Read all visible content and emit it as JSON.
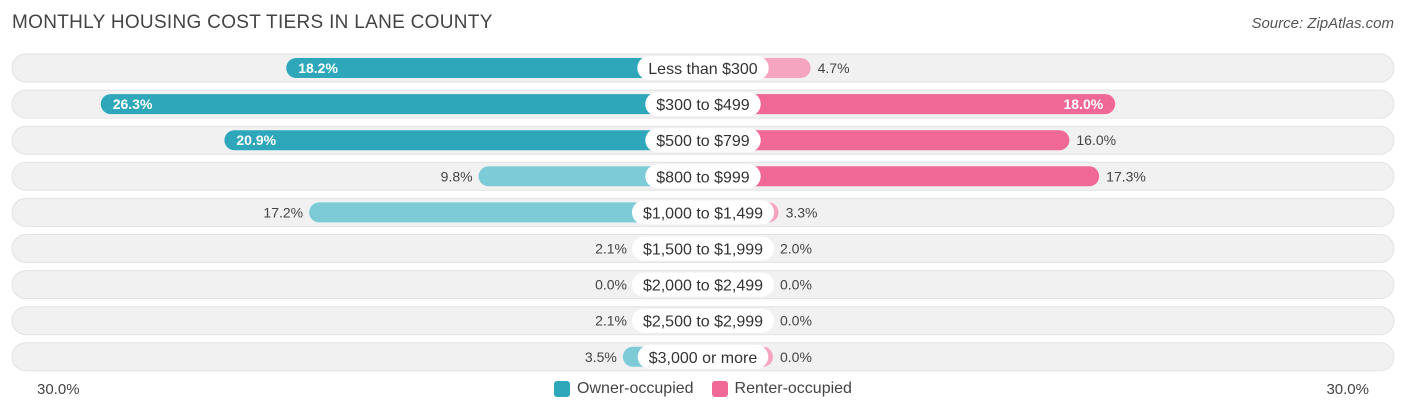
{
  "chart_data": {
    "type": "bar",
    "orientation": "horizontal-diverging",
    "title": "MONTHLY HOUSING COST TIERS IN LANE COUNTY",
    "source": "Source: ZipAtlas.com",
    "categories": [
      "Less than $300",
      "$300 to $499",
      "$500 to $799",
      "$800 to $999",
      "$1,000 to $1,499",
      "$1,500 to $1,999",
      "$2,000 to $2,499",
      "$2,500 to $2,999",
      "$3,000 or more"
    ],
    "series": [
      {
        "name": "Owner-occupied",
        "side": "left",
        "values": [
          18.2,
          26.3,
          20.9,
          9.8,
          17.2,
          2.1,
          0.0,
          2.1,
          3.5
        ],
        "labels": [
          "18.2%",
          "26.3%",
          "20.9%",
          "9.8%",
          "17.2%",
          "2.1%",
          "0.0%",
          "2.1%",
          "3.5%"
        ]
      },
      {
        "name": "Renter-occupied",
        "side": "right",
        "values": [
          4.7,
          18.0,
          16.0,
          17.3,
          3.3,
          2.0,
          0.0,
          0.0,
          0.0
        ],
        "labels": [
          "4.7%",
          "18.0%",
          "16.0%",
          "17.3%",
          "3.3%",
          "2.0%",
          "0.0%",
          "0.0%",
          "0.0%"
        ]
      }
    ],
    "xlim": [
      -30,
      30
    ],
    "axis_labels": {
      "left": "30.0%",
      "right": "30.0%"
    },
    "legend": [
      "Owner-occupied",
      "Renter-occupied"
    ],
    "legend_position": "bottom-center",
    "colors": {
      "owner_strong": "#2ea7ba",
      "owner_light": "#7ccbd6",
      "renter_strong": "#f06895",
      "renter_light": "#f6a5c0",
      "row_bg": "#f1f1f1",
      "row_border": "#e2e2e2"
    }
  }
}
